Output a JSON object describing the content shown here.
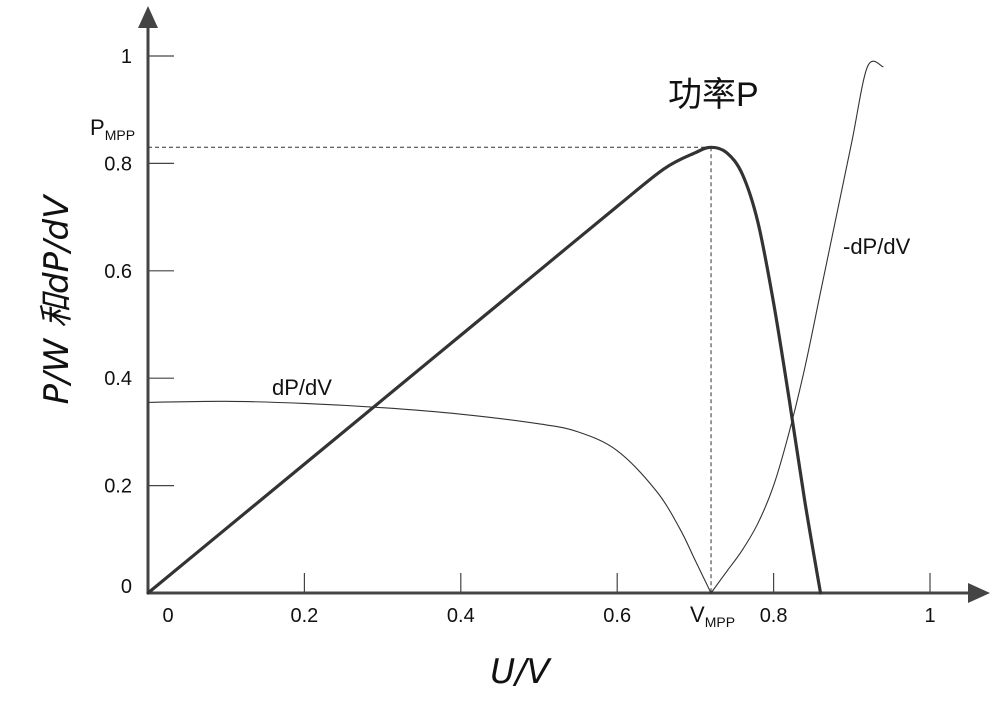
{
  "chart_data": {
    "type": "line",
    "title": "",
    "xlabel": "U/V",
    "ylabel": "P/W 和dP/dV",
    "xlim": [
      0,
      1.05
    ],
    "ylim": [
      0,
      1.07
    ],
    "x_ticks": [
      {
        "value": 0,
        "label": "0"
      },
      {
        "value": 0.2,
        "label": "0.2"
      },
      {
        "value": 0.4,
        "label": "0.4"
      },
      {
        "value": 0.6,
        "label": "0.6"
      },
      {
        "value": 0.8,
        "label": "0.8"
      },
      {
        "value": 1,
        "label": "1"
      }
    ],
    "y_ticks": [
      {
        "value": 0,
        "label": "0"
      },
      {
        "value": 0.2,
        "label": "0.2"
      },
      {
        "value": 0.4,
        "label": "0.4"
      },
      {
        "value": 0.6,
        "label": "0.6"
      },
      {
        "value": 0.8,
        "label": "0.8"
      },
      {
        "value": 1,
        "label": "1"
      }
    ],
    "grid": false,
    "series": [
      {
        "name": "功率P",
        "color": "#333333",
        "x": [
          0,
          0.1,
          0.2,
          0.3,
          0.4,
          0.5,
          0.6,
          0.66,
          0.7,
          0.72,
          0.74,
          0.76,
          0.78,
          0.8,
          0.82,
          0.84,
          0.86
        ],
        "y": [
          0,
          0.12,
          0.24,
          0.36,
          0.48,
          0.6,
          0.72,
          0.79,
          0.82,
          0.83,
          0.82,
          0.78,
          0.69,
          0.54,
          0.36,
          0.17,
          0
        ]
      },
      {
        "name": "dP/dV",
        "color": "#333333",
        "x": [
          0,
          0.1,
          0.2,
          0.3,
          0.4,
          0.5,
          0.55,
          0.6,
          0.65,
          0.68,
          0.7,
          0.72
        ],
        "y": [
          0.355,
          0.357,
          0.353,
          0.345,
          0.333,
          0.315,
          0.3,
          0.265,
          0.19,
          0.12,
          0.06,
          0
        ]
      },
      {
        "name": "-dP/dV",
        "color": "#333333",
        "x": [
          0.72,
          0.74,
          0.76,
          0.78,
          0.8,
          0.82,
          0.84,
          0.86,
          0.88,
          0.9,
          0.92,
          0.94
        ],
        "y": [
          0,
          0.04,
          0.08,
          0.13,
          0.2,
          0.3,
          0.42,
          0.56,
          0.7,
          0.84,
          0.98,
          0.98
        ]
      }
    ],
    "annotations": {
      "power_label": "功率P",
      "dpdv_label": "dP/dV",
      "neg_dpdv_label": "-dP/dV",
      "pmpp_main": "P",
      "pmpp_sub": "MPP",
      "vmpp_main": "V",
      "vmpp_sub": "MPP",
      "mpp": {
        "x": 0.72,
        "y": 0.83
      }
    }
  }
}
